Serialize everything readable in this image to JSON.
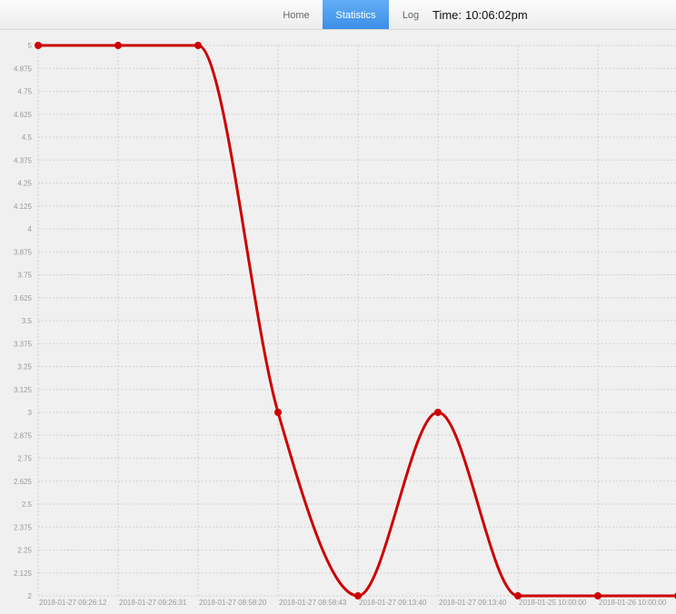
{
  "nav": {
    "items": [
      {
        "label": "Home"
      },
      {
        "label": "Statistics"
      },
      {
        "label": "Log"
      }
    ],
    "time_label": "Time:",
    "time_value": "10:06:02pm"
  },
  "colors": {
    "line": "#cc0000",
    "grid": "#d2d2d2",
    "active_tab": "#4a9cf0"
  },
  "chart_data": {
    "type": "line",
    "categories": [
      "2018-01-27 09:26:12",
      "2018-01-27 09:26:31",
      "2018-01-27 08:58:20",
      "2018-01-27 08:58:43",
      "2018-01-27 09:13:40",
      "2018-01-27 09:13:40",
      "2018-01-25 10:00:00",
      "2018-01-26 10:00:00",
      ""
    ],
    "series": [
      {
        "values": [
          5,
          5,
          5,
          3,
          2,
          3,
          2,
          2,
          2
        ]
      }
    ],
    "ylim": [
      2,
      5
    ],
    "yticks": [
      "5",
      "4.875",
      "4.75",
      "4.625",
      "4.5",
      "4.375",
      "4.25",
      "4.125",
      "4",
      "3.875",
      "3.75",
      "3.625",
      "3.5",
      "3.375",
      "3.25",
      "3.125",
      "3",
      "2.875",
      "2.75",
      "2.625",
      "2.5",
      "2.375",
      "2.25",
      "2.125",
      "2"
    ],
    "grid": true,
    "smooth": true
  }
}
